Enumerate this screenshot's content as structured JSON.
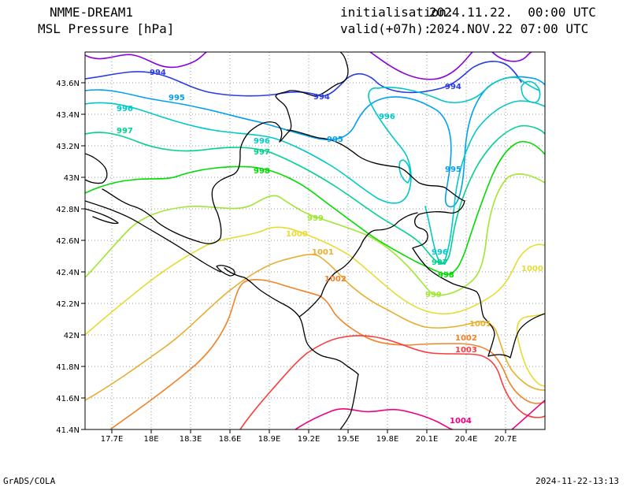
{
  "header": {
    "model": "NMME-DREAM1",
    "field": "MSL Pressure [hPa]",
    "init_label": "initialisation:",
    "init_value": "2024.11.22.  00:00 UTC",
    "valid_label": "valid(+07h):",
    "valid_value": "2024.NOV.22 07:00 UTC"
  },
  "footer": {
    "left": "GrADS/COLA",
    "right": "2024-11-22-13:13"
  },
  "map": {
    "lon_ticks": [
      "17.7E",
      "18E",
      "18.3E",
      "18.6E",
      "18.9E",
      "19.2E",
      "19.5E",
      "19.8E",
      "20.1E",
      "20.4E",
      "20.7E"
    ],
    "lat_ticks": [
      "43.6N",
      "43.4N",
      "43.2N",
      "43N",
      "42.8N",
      "42.6N",
      "42.4N",
      "42.2N",
      "42N",
      "41.8N",
      "41.6N",
      "41.4N"
    ],
    "grid": "dotted",
    "colors": {
      "993": "#8a00dc",
      "994": "#2a3ce6",
      "995": "#00a0f0",
      "996": "#00c8c8",
      "997": "#00d28c",
      "998": "#00dc00",
      "999": "#a0e632",
      "1000": "#e6dc32",
      "1001": "#e6af2d",
      "1002": "#f08228",
      "1003": "#fa3c3c",
      "1004": "#f00082",
      "coast": "#000000"
    },
    "contour_labels": [
      {
        "id": "994",
        "text": "994",
        "color_key": "994"
      },
      {
        "id": "994b",
        "text": "994",
        "color_key": "994"
      },
      {
        "id": "994c",
        "text": "994",
        "color_key": "994"
      },
      {
        "id": "995a",
        "text": "995",
        "color_key": "995"
      },
      {
        "id": "995b",
        "text": "995",
        "color_key": "995"
      },
      {
        "id": "995c",
        "text": "995",
        "color_key": "995"
      },
      {
        "id": "996a",
        "text": "996",
        "color_key": "996"
      },
      {
        "id": "996b",
        "text": "996",
        "color_key": "996"
      },
      {
        "id": "996c",
        "text": "996",
        "color_key": "996"
      },
      {
        "id": "996d",
        "text": "996",
        "color_key": "996"
      },
      {
        "id": "997a",
        "text": "997",
        "color_key": "997"
      },
      {
        "id": "997b",
        "text": "997",
        "color_key": "997"
      },
      {
        "id": "997c",
        "text": "997",
        "color_key": "997"
      },
      {
        "id": "998a",
        "text": "998",
        "color_key": "998"
      },
      {
        "id": "998b",
        "text": "998",
        "color_key": "998"
      },
      {
        "id": "999a",
        "text": "999",
        "color_key": "999"
      },
      {
        "id": "999b",
        "text": "999",
        "color_key": "999"
      },
      {
        "id": "1000a",
        "text": "1000",
        "color_key": "1000"
      },
      {
        "id": "1000b",
        "text": "1000",
        "color_key": "1000"
      },
      {
        "id": "1001a",
        "text": "1001",
        "color_key": "1001"
      },
      {
        "id": "1001b",
        "text": "1001",
        "color_key": "1001"
      },
      {
        "id": "1002a",
        "text": "1002",
        "color_key": "1002"
      },
      {
        "id": "1002b",
        "text": "1002",
        "color_key": "1002"
      },
      {
        "id": "1003a",
        "text": "1003",
        "color_key": "1003"
      },
      {
        "id": "1004a",
        "text": "1004",
        "color_key": "1004"
      }
    ]
  }
}
